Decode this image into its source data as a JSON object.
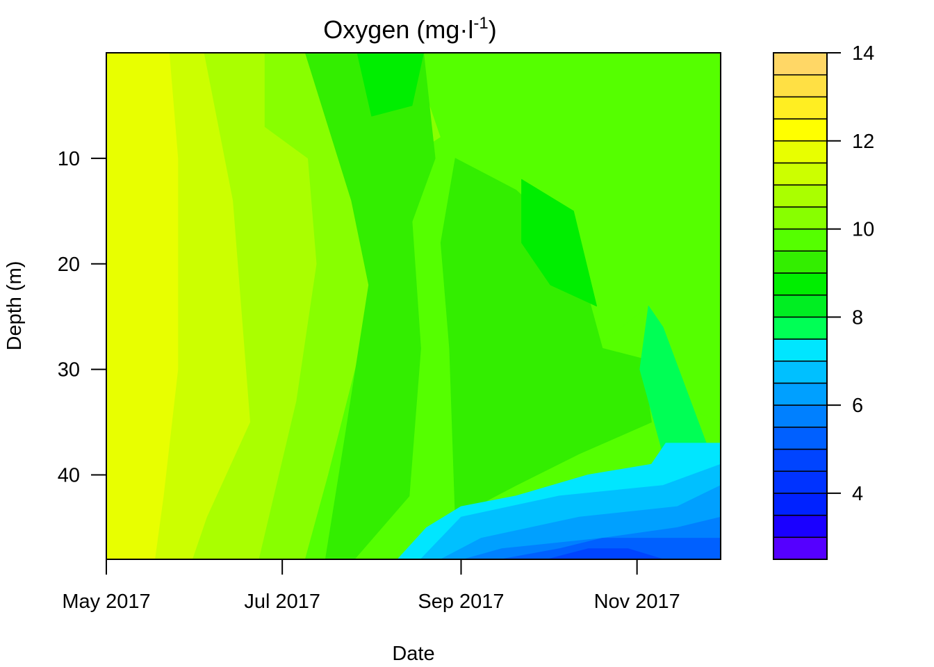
{
  "chart_data": {
    "type": "heatmap",
    "title": "Oxygen (mg·l",
    "title_superscript": "-1",
    "title_close": ")",
    "xlabel": "Date",
    "ylabel": "Depth (m)",
    "x_tick_labels": [
      "May 2017",
      "Jul 2017",
      "Sep 2017",
      "Nov 2017"
    ],
    "x_tick_dates": [
      "2017-05-01",
      "2017-07-01",
      "2017-09-01",
      "2017-11-01"
    ],
    "xlim": [
      "2017-05-01",
      "2017-11-30"
    ],
    "y_ticks": [
      10,
      20,
      30,
      40
    ],
    "ylim": [
      0,
      48
    ],
    "y_reversed": true,
    "colorbar": {
      "ticks": [
        4,
        6,
        8,
        10,
        12,
        14
      ],
      "levels": [
        2.5,
        3,
        3.5,
        4,
        4.5,
        5,
        5.5,
        6,
        6.5,
        7,
        7.5,
        8,
        8.5,
        9,
        9.5,
        10,
        10.5,
        11,
        11.5,
        12,
        12.5,
        13,
        13.5,
        14
      ],
      "colors": [
        "#5500FF",
        "#1A00FF",
        "#0022FF",
        "#0033FF",
        "#0044FF",
        "#0060FF",
        "#0080FF",
        "#00A0FF",
        "#00C0FF",
        "#00E6FF",
        "#00FF55",
        "#00EE22",
        "#00EE00",
        "#33EE00",
        "#55FF00",
        "#88FF00",
        "#AAFF00",
        "#CCFF00",
        "#E8FF00",
        "#FFFF00",
        "#FFEE22",
        "#FFE044",
        "#FFD766"
      ]
    },
    "regions": [
      {
        "level": 11.5,
        "points": [
          [
            "2017-05-01",
            0
          ],
          [
            "2017-05-23",
            0
          ],
          [
            "2017-05-26",
            10
          ],
          [
            "2017-05-26",
            30
          ],
          [
            "2017-05-21",
            42
          ],
          [
            "2017-05-18",
            48
          ],
          [
            "2017-05-01",
            48
          ]
        ]
      },
      {
        "level": 11.0,
        "points": [
          [
            "2017-05-23",
            0
          ],
          [
            "2017-06-04",
            0
          ],
          [
            "2017-06-14",
            14
          ],
          [
            "2017-06-20",
            35
          ],
          [
            "2017-06-05",
            44
          ],
          [
            "2017-05-31",
            48
          ],
          [
            "2017-05-18",
            48
          ],
          [
            "2017-05-21",
            42
          ],
          [
            "2017-05-26",
            30
          ],
          [
            "2017-05-26",
            10
          ]
        ]
      },
      {
        "level": 10.5,
        "points": [
          [
            "2017-06-04",
            0
          ],
          [
            "2017-06-25",
            0
          ],
          [
            "2017-06-25",
            7
          ],
          [
            "2017-07-10",
            10
          ],
          [
            "2017-07-13",
            20
          ],
          [
            "2017-07-06",
            33
          ],
          [
            "2017-06-23",
            48
          ],
          [
            "2017-05-31",
            48
          ],
          [
            "2017-06-05",
            44
          ],
          [
            "2017-06-20",
            35
          ],
          [
            "2017-06-14",
            14
          ]
        ]
      },
      {
        "level": 10.0,
        "points": [
          [
            "2017-06-25",
            0
          ],
          [
            "2017-08-15",
            0
          ],
          [
            "2017-08-25",
            8
          ],
          [
            "2017-08-08",
            11
          ],
          [
            "2017-07-31",
            25
          ],
          [
            "2017-07-17",
            40
          ],
          [
            "2017-07-09",
            48
          ],
          [
            "2017-06-23",
            48
          ],
          [
            "2017-07-06",
            33
          ],
          [
            "2017-07-13",
            20
          ],
          [
            "2017-07-10",
            10
          ],
          [
            "2017-06-25",
            7
          ]
        ]
      },
      {
        "level": 9.5,
        "points": [
          [
            "2017-07-09",
            0
          ],
          [
            "2017-11-30",
            0
          ],
          [
            "2017-11-30",
            35
          ],
          [
            "2017-11-12",
            33
          ],
          [
            "2017-11-05",
            24
          ],
          [
            "2017-10-08",
            30
          ],
          [
            "2017-09-20",
            40
          ],
          [
            "2017-08-20",
            45
          ],
          [
            "2017-08-05",
            48
          ],
          [
            "2017-07-09",
            48
          ],
          [
            "2017-07-17",
            40
          ],
          [
            "2017-07-31",
            25
          ],
          [
            "2017-08-08",
            11
          ],
          [
            "2017-08-25",
            8
          ],
          [
            "2017-08-15",
            0
          ]
        ]
      },
      {
        "level": 9.0,
        "points": [
          [
            "2017-07-09",
            0
          ],
          [
            "2017-08-19",
            0
          ],
          [
            "2017-08-23",
            10
          ],
          [
            "2017-08-15",
            16
          ],
          [
            "2017-08-18",
            28
          ],
          [
            "2017-08-14",
            42
          ],
          [
            "2017-07-26",
            48
          ],
          [
            "2017-07-16",
            48
          ],
          [
            "2017-07-23",
            36
          ],
          [
            "2017-07-31",
            22
          ],
          [
            "2017-07-25",
            14
          ]
        ]
      },
      {
        "level": 9.0,
        "points": [
          [
            "2017-08-30",
            10
          ],
          [
            "2017-09-20",
            13
          ],
          [
            "2017-10-10",
            18
          ],
          [
            "2017-10-20",
            28
          ],
          [
            "2017-11-03",
            29
          ],
          [
            "2017-11-06",
            35
          ],
          [
            "2017-10-12",
            38
          ],
          [
            "2017-09-20",
            41
          ],
          [
            "2017-08-30",
            44
          ],
          [
            "2017-08-28",
            28
          ],
          [
            "2017-08-25",
            18
          ]
        ]
      },
      {
        "level": 8.5,
        "points": [
          [
            "2017-07-27",
            0
          ],
          [
            "2017-08-19",
            0
          ],
          [
            "2017-08-15",
            5
          ],
          [
            "2017-08-01",
            6
          ]
        ]
      },
      {
        "level": 8.5,
        "points": [
          [
            "2017-09-22",
            12
          ],
          [
            "2017-10-10",
            15
          ],
          [
            "2017-10-18",
            24
          ],
          [
            "2017-10-02",
            22
          ],
          [
            "2017-09-22",
            18
          ]
        ]
      },
      {
        "level": 7.5,
        "points": [
          [
            "2017-11-05",
            24
          ],
          [
            "2017-11-10",
            26
          ],
          [
            "2017-11-25",
            37
          ],
          [
            "2017-11-10",
            38
          ],
          [
            "2017-11-02",
            30
          ]
        ]
      },
      {
        "level": 7.0,
        "points": [
          [
            "2017-08-10",
            48
          ],
          [
            "2017-08-20",
            45
          ],
          [
            "2017-09-01",
            43
          ],
          [
            "2017-09-20",
            42
          ],
          [
            "2017-10-15",
            40
          ],
          [
            "2017-11-06",
            39
          ],
          [
            "2017-11-11",
            37
          ],
          [
            "2017-11-30",
            37
          ],
          [
            "2017-11-30",
            48
          ]
        ]
      },
      {
        "level": 6.5,
        "points": [
          [
            "2017-08-18",
            48
          ],
          [
            "2017-09-01",
            44
          ],
          [
            "2017-10-05",
            42
          ],
          [
            "2017-11-10",
            41
          ],
          [
            "2017-11-30",
            39
          ],
          [
            "2017-11-30",
            48
          ]
        ]
      },
      {
        "level": 6.0,
        "points": [
          [
            "2017-08-25",
            48
          ],
          [
            "2017-09-08",
            46
          ],
          [
            "2017-10-12",
            44
          ],
          [
            "2017-11-15",
            43
          ],
          [
            "2017-11-30",
            41
          ],
          [
            "2017-11-30",
            48
          ]
        ]
      },
      {
        "level": 5.5,
        "points": [
          [
            "2017-09-02",
            48
          ],
          [
            "2017-09-15",
            47
          ],
          [
            "2017-10-20",
            46
          ],
          [
            "2017-11-15",
            45
          ],
          [
            "2017-11-30",
            44
          ],
          [
            "2017-11-30",
            48
          ]
        ]
      },
      {
        "level": 5.0,
        "points": [
          [
            "2017-09-15",
            48
          ],
          [
            "2017-10-05",
            47
          ],
          [
            "2017-10-20",
            46
          ],
          [
            "2017-11-30",
            46
          ],
          [
            "2017-11-30",
            48
          ]
        ]
      },
      {
        "level": 4.5,
        "points": [
          [
            "2017-10-01",
            48
          ],
          [
            "2017-10-15",
            47
          ],
          [
            "2017-10-29",
            47
          ],
          [
            "2017-11-10",
            48
          ]
        ]
      }
    ]
  }
}
